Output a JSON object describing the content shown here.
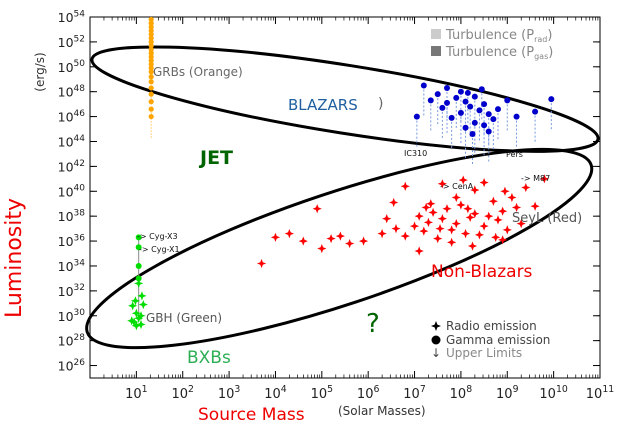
{
  "chart_data": {
    "type": "scatter",
    "title": "",
    "xlabel": "Source Mass",
    "xlabel_units": "(Solar Masses)",
    "ylabel": "Luminosity",
    "ylabel_units": "(erg/s)",
    "x_scale": "log",
    "y_scale": "log",
    "xlim_log10": [
      0,
      11
    ],
    "ylim_log10": [
      25,
      54
    ],
    "x_ticks": [
      {
        "exp": 1,
        "base": "10",
        "sup": "1"
      },
      {
        "exp": 2,
        "base": "10",
        "sup": "2"
      },
      {
        "exp": 3,
        "base": "10",
        "sup": "3"
      },
      {
        "exp": 4,
        "base": "10",
        "sup": "4"
      },
      {
        "exp": 5,
        "base": "10",
        "sup": "5"
      },
      {
        "exp": 6,
        "base": "10",
        "sup": "6"
      },
      {
        "exp": 7,
        "base": "10",
        "sup": "7"
      },
      {
        "exp": 8,
        "base": "10",
        "sup": "8"
      },
      {
        "exp": 9,
        "base": "10",
        "sup": "9"
      },
      {
        "exp": 10,
        "base": "10",
        "sup": "10"
      },
      {
        "exp": 11,
        "base": "10",
        "sup": "11"
      }
    ],
    "y_ticks": [
      {
        "exp": 26,
        "base": "10",
        "sup": "26"
      },
      {
        "exp": 28,
        "base": "10",
        "sup": "28"
      },
      {
        "exp": 30,
        "base": "10",
        "sup": "30"
      },
      {
        "exp": 32,
        "base": "10",
        "sup": "32"
      },
      {
        "exp": 34,
        "base": "10",
        "sup": "34"
      },
      {
        "exp": 36,
        "base": "10",
        "sup": "36"
      },
      {
        "exp": 38,
        "base": "10",
        "sup": "38"
      },
      {
        "exp": 40,
        "base": "10",
        "sup": "40"
      },
      {
        "exp": 42,
        "base": "10",
        "sup": "42"
      },
      {
        "exp": 44,
        "base": "10",
        "sup": "44"
      },
      {
        "exp": 46,
        "base": "10",
        "sup": "46"
      },
      {
        "exp": 48,
        "base": "10",
        "sup": "48"
      },
      {
        "exp": 50,
        "base": "10",
        "sup": "50"
      },
      {
        "exp": 52,
        "base": "10",
        "sup": "52"
      },
      {
        "exp": 54,
        "base": "10",
        "sup": "54"
      }
    ],
    "colors": {
      "grbs": "#ffa500",
      "blazars": "#0000cc",
      "blazar_limits": "#7799dd",
      "agn": "#ff0000",
      "gbh": "#00dd00",
      "jet_label": "#006400",
      "non_blazar_label": "#ee0000",
      "blazar_label": "#1f5fa0",
      "axis_label": "#ee0000"
    },
    "annotations": {
      "grbs_label": "GRBs (Orange)",
      "blazars_label": "BLAZARS",
      "jet_label": "JET",
      "seyl_label": "SeyL (Red)",
      "non_blazars_label": "Non-Blazars",
      "gbh_label": "GBH (Green)",
      "bxbs_label": "BXBs",
      "question_mark": "?",
      "cygx3": "-> Cyg-X3",
      "cygx1": "-> Cyg-X1",
      "cena": "-> CenA",
      "m87": "-> M87",
      "ic310": "IC310",
      "perseus": "Pers"
    },
    "legend": {
      "position": "top-right",
      "turbulence_rad": "Turbulence (P",
      "turbulence_rad_sub": "rad",
      "turbulence_gas": "Turbulence (P",
      "turbulence_gas_sub": "gas",
      "close_paren": ")",
      "radio": "Radio emission",
      "gamma": "Gamma emission",
      "upper": "Upper Limits"
    },
    "series": [
      {
        "name": "GRBs",
        "marker": "dot",
        "color_key": "grbs",
        "points": [
          [
            1.32,
            53.8
          ],
          [
            1.32,
            53.5
          ],
          [
            1.32,
            53.2
          ],
          [
            1.32,
            52.9
          ],
          [
            1.32,
            52.6
          ],
          [
            1.32,
            52.3
          ],
          [
            1.32,
            52.0
          ],
          [
            1.32,
            51.7
          ],
          [
            1.32,
            51.4
          ],
          [
            1.32,
            51.1
          ],
          [
            1.32,
            50.8
          ],
          [
            1.32,
            50.5
          ],
          [
            1.32,
            50.2
          ],
          [
            1.32,
            49.9
          ],
          [
            1.32,
            49.6
          ],
          [
            1.32,
            49.2
          ],
          [
            1.32,
            48.8
          ],
          [
            1.32,
            48.3
          ],
          [
            1.32,
            47.8
          ],
          [
            1.32,
            47.2
          ],
          [
            1.32,
            46.6
          ],
          [
            1.32,
            46.0
          ]
        ]
      },
      {
        "name": "Blazars",
        "marker": "dot",
        "color_key": "blazars",
        "points": [
          [
            7.2,
            48.5
          ],
          [
            7.5,
            47.8
          ],
          [
            7.7,
            48.3
          ],
          [
            7.9,
            47.5
          ],
          [
            8.0,
            48.0
          ],
          [
            8.1,
            47.2
          ],
          [
            8.2,
            46.8
          ],
          [
            8.3,
            47.6
          ],
          [
            8.4,
            46.5
          ],
          [
            8.5,
            47.0
          ],
          [
            8.6,
            46.2
          ],
          [
            8.7,
            45.8
          ],
          [
            8.3,
            45.5
          ],
          [
            8.0,
            46.3
          ],
          [
            7.8,
            45.9
          ],
          [
            7.6,
            46.7
          ],
          [
            8.1,
            45.1
          ],
          [
            8.5,
            45.3
          ],
          [
            8.8,
            46.6
          ],
          [
            9.0,
            47.3
          ],
          [
            9.2,
            46.0
          ],
          [
            9.6,
            46.4
          ],
          [
            9.95,
            47.4
          ],
          [
            7.05,
            46.0
          ],
          [
            8.25,
            44.6
          ],
          [
            8.6,
            44.8
          ],
          [
            7.7,
            47.1
          ],
          [
            8.15,
            47.9
          ],
          [
            8.45,
            48.2
          ],
          [
            7.35,
            47.3
          ]
        ]
      },
      {
        "name": "SeyL (AGN, radio)",
        "marker": "star",
        "color_key": "agn",
        "points": [
          [
            3.7,
            34.2
          ],
          [
            4.0,
            36.3
          ],
          [
            4.3,
            36.6
          ],
          [
            4.6,
            36.0
          ],
          [
            5.0,
            35.4
          ],
          [
            5.2,
            36.2
          ],
          [
            5.4,
            36.4
          ],
          [
            5.6,
            35.8
          ],
          [
            5.9,
            36.0
          ],
          [
            6.3,
            36.6
          ],
          [
            6.6,
            37.0
          ],
          [
            6.8,
            36.4
          ],
          [
            7.0,
            37.2
          ],
          [
            7.1,
            38.0
          ],
          [
            7.2,
            36.8
          ],
          [
            7.3,
            37.5
          ],
          [
            7.4,
            38.3
          ],
          [
            7.5,
            36.2
          ],
          [
            7.6,
            37.8
          ],
          [
            7.7,
            38.6
          ],
          [
            7.8,
            36.9
          ],
          [
            7.9,
            37.4
          ],
          [
            8.0,
            38.9
          ],
          [
            8.1,
            36.6
          ],
          [
            8.2,
            37.9
          ],
          [
            8.3,
            38.2
          ],
          [
            8.4,
            36.5
          ],
          [
            8.5,
            37.2
          ],
          [
            8.6,
            38.0
          ],
          [
            8.7,
            39.2
          ],
          [
            8.8,
            37.7
          ],
          [
            8.9,
            38.4
          ],
          [
            9.0,
            36.9
          ],
          [
            9.1,
            39.5
          ],
          [
            9.2,
            38.7
          ],
          [
            9.3,
            37.4
          ],
          [
            9.4,
            40.3
          ],
          [
            9.6,
            38.8
          ],
          [
            7.6,
            40.6
          ],
          [
            8.05,
            40.9
          ],
          [
            8.3,
            40.1
          ],
          [
            6.8,
            40.4
          ],
          [
            7.9,
            39.5
          ],
          [
            8.5,
            40.7
          ],
          [
            7.35,
            39.0
          ],
          [
            7.8,
            35.9
          ],
          [
            8.25,
            35.6
          ],
          [
            7.1,
            35.2
          ],
          [
            8.9,
            36.1
          ],
          [
            4.9,
            38.6
          ],
          [
            6.55,
            39.1
          ],
          [
            7.55,
            37.0
          ],
          [
            8.15,
            38.6
          ],
          [
            8.75,
            36.3
          ],
          [
            7.25,
            38.7
          ],
          [
            9.8,
            41.0
          ],
          [
            8.95,
            40.0
          ],
          [
            6.4,
            37.8
          ]
        ]
      },
      {
        "name": "GBH",
        "marker": "star",
        "color_key": "gbh",
        "points": [
          [
            1.0,
            30.2
          ],
          [
            1.05,
            29.8
          ],
          [
            0.95,
            29.5
          ],
          [
            1.1,
            30.0
          ],
          [
            0.9,
            29.6
          ],
          [
            1.0,
            29.2
          ],
          [
            1.12,
            31.6
          ],
          [
            1.15,
            30.9
          ],
          [
            0.92,
            30.8
          ],
          [
            1.05,
            32.6
          ],
          [
            1.1,
            29.3
          ],
          [
            0.98,
            31.2
          ]
        ]
      },
      {
        "name": "GBH (gamma)",
        "marker": "dot",
        "color_key": "gbh",
        "points": [
          [
            1.05,
            36.3
          ],
          [
            1.05,
            35.5
          ],
          [
            1.05,
            34.0
          ],
          [
            1.05,
            33.0
          ]
        ]
      }
    ]
  }
}
